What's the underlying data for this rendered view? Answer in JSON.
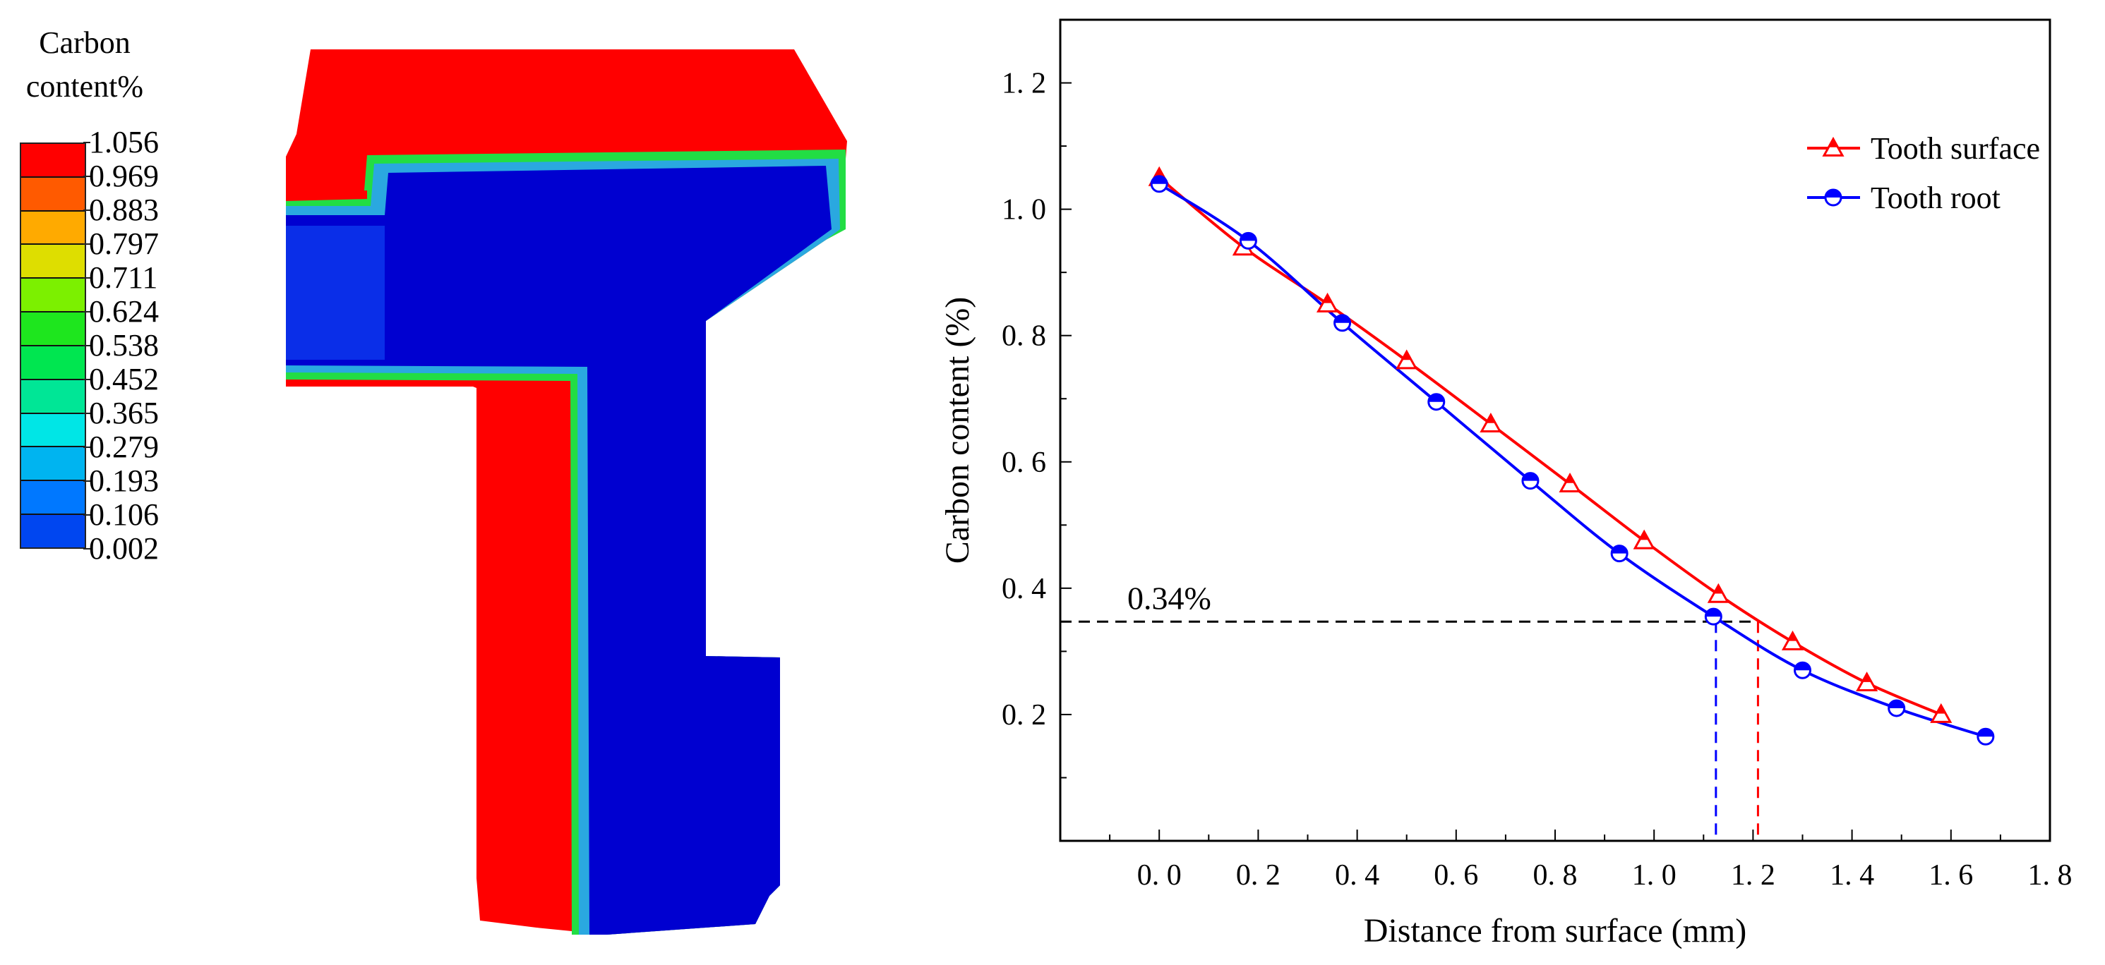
{
  "legend": {
    "title_line1": "Carbon",
    "title_line2": "content%",
    "ticks": [
      "1.056",
      "0.969",
      "0.883",
      "0.797",
      "0.711",
      "0.624",
      "0.538",
      "0.452",
      "0.365",
      "0.279",
      "0.193",
      "0.106",
      "0.002"
    ],
    "colors": [
      "#ff0000",
      "#ff5a00",
      "#ffaa00",
      "#dede00",
      "#7cf000",
      "#1ee61e",
      "#00e650",
      "#00e696",
      "#00e6e6",
      "#00b4f0",
      "#0078ff",
      "#0046f0",
      "#0000e6"
    ]
  },
  "contour_colors": {
    "high": "#ff0000",
    "core": "#0000d0",
    "core_light": "#0a2ee8",
    "transition_green": "#22dd44",
    "transition_cyan": "#2aa8e0"
  },
  "chart_data": {
    "type": "line",
    "xlabel": "Distance from surface (mm)",
    "ylabel": "Carbon content (%)",
    "xlim": [
      -0.2,
      1.8
    ],
    "ylim": [
      0.0,
      1.3
    ],
    "xticks": [
      "0. 0",
      "0. 2",
      "0. 4",
      "0. 6",
      "0. 8",
      "1. 0",
      "1. 2",
      "1. 4",
      "1. 6",
      "1. 8"
    ],
    "xtick_values": [
      0.0,
      0.2,
      0.4,
      0.6,
      0.8,
      1.0,
      1.2,
      1.4,
      1.6,
      1.8
    ],
    "yticks": [
      "0. 2",
      "0. 4",
      "0. 6",
      "0. 8",
      "1. 0",
      "1. 2"
    ],
    "ytick_values": [
      0.2,
      0.4,
      0.6,
      0.8,
      1.0,
      1.2
    ],
    "legend_position": "top-right",
    "series": [
      {
        "name": "Tooth surface",
        "color": "#ff0000",
        "marker": "triangle",
        "x": [
          0.0,
          0.17,
          0.34,
          0.5,
          0.67,
          0.83,
          0.98,
          1.13,
          1.28,
          1.43,
          1.58
        ],
        "y": [
          1.05,
          0.94,
          0.85,
          0.76,
          0.66,
          0.565,
          0.475,
          0.39,
          0.315,
          0.25,
          0.2
        ]
      },
      {
        "name": "Tooth root",
        "color": "#0000ff",
        "marker": "circle",
        "x": [
          0.0,
          0.18,
          0.37,
          0.56,
          0.75,
          0.93,
          1.12,
          1.3,
          1.49,
          1.67
        ],
        "y": [
          1.04,
          0.95,
          0.82,
          0.695,
          0.57,
          0.455,
          0.355,
          0.27,
          0.21,
          0.165
        ]
      }
    ],
    "annotation": {
      "label": "0.34%",
      "y": 0.347,
      "x_surface": 1.21,
      "x_root": 1.125
    }
  }
}
